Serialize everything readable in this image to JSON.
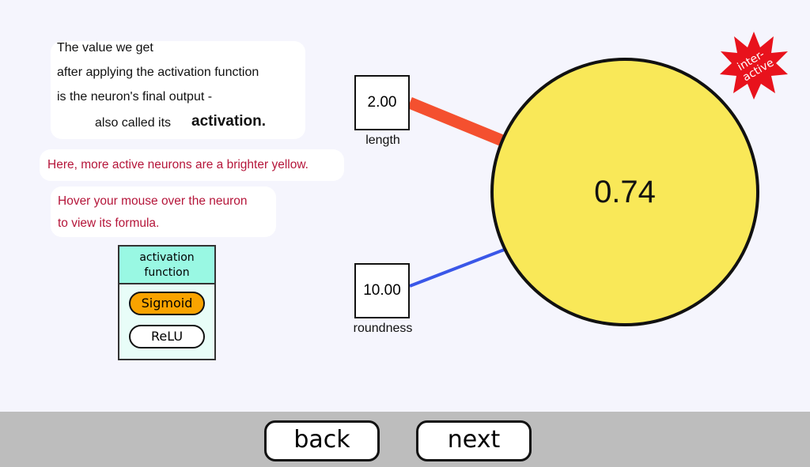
{
  "explanation": {
    "lines": [
      "The value we get",
      "after applying the activation function",
      "is the neuron's final output -",
      "also called its"
    ],
    "emphasis": "activation."
  },
  "note_brightness": "Here, more active neurons are a brighter yellow.",
  "note_hover": [
    "Hover your mouse over the neuron",
    "to view its formula."
  ],
  "activation_panel": {
    "title_line1": "activation",
    "title_line2": "function",
    "options": [
      {
        "label": "Sigmoid",
        "selected": true
      },
      {
        "label": "ReLU",
        "selected": false
      }
    ]
  },
  "inputs": [
    {
      "value": "2.00",
      "label": "length",
      "weight_color": "#f4502f"
    },
    {
      "value": "10.00",
      "label": "roundness",
      "weight_color": "#3a57e8"
    }
  ],
  "neuron": {
    "output": "0.74",
    "color": "#f9e858"
  },
  "badge": {
    "text": "inter-active",
    "color": "#e8121c"
  },
  "nav": {
    "back": "back",
    "next": "next"
  }
}
